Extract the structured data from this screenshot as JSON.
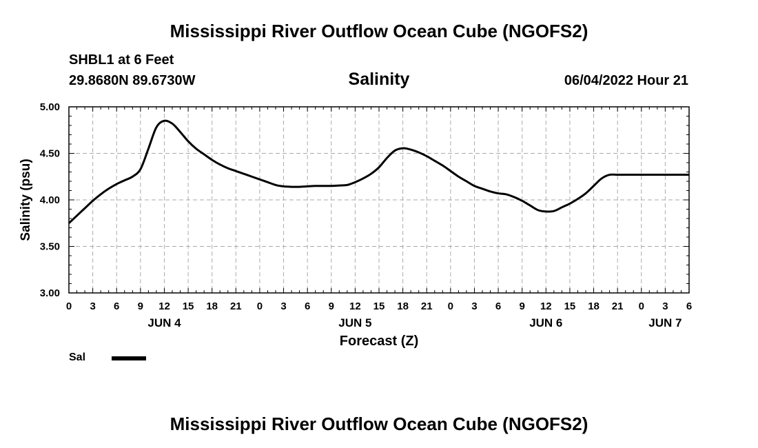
{
  "header": {
    "main_title": "Mississippi River Outflow Ocean Cube (NGOFS2)",
    "station": "SHBL1 at 6 Feet",
    "coords": "29.8680N  89.6730W",
    "plot_title": "Salinity",
    "datetime": "06/04/2022 Hour 21",
    "bottom_title": "Mississippi River Outflow Ocean Cube (NGOFS2)"
  },
  "legend": {
    "label": "Sal"
  },
  "colors": {
    "line": "#000000",
    "grid": "#aaaaaa"
  },
  "chart_data": {
    "type": "line",
    "title": "Salinity",
    "xlabel": "Forecast (Z)",
    "ylabel": "Salinity (psu)",
    "xlim": [
      0,
      78
    ],
    "ylim": [
      3.0,
      5.0
    ],
    "y_ticks": [
      3.0,
      3.5,
      4.0,
      4.5,
      5.0
    ],
    "y_tick_labels": [
      "3.00",
      "3.50",
      "4.00",
      "4.50",
      "5.00"
    ],
    "x_ticks": [
      0,
      3,
      6,
      9,
      12,
      15,
      18,
      21,
      24,
      27,
      30,
      33,
      36,
      39,
      42,
      45,
      48,
      51,
      54,
      57,
      60,
      63,
      66,
      69,
      72,
      75,
      78
    ],
    "x_tick_labels": [
      "0",
      "3",
      "6",
      "9",
      "12",
      "15",
      "18",
      "21",
      "0",
      "3",
      "6",
      "9",
      "12",
      "15",
      "18",
      "21",
      "0",
      "3",
      "6",
      "9",
      "12",
      "15",
      "18",
      "21",
      "0",
      "3",
      "6"
    ],
    "day_labels": [
      {
        "text": "JUN 4",
        "x": 12
      },
      {
        "text": "JUN 5",
        "x": 36
      },
      {
        "text": "JUN 6",
        "x": 60
      },
      {
        "text": "JUN 7",
        "x": 75
      }
    ],
    "grid": true,
    "series": [
      {
        "name": "Sal",
        "x": [
          0,
          1,
          2,
          3,
          4,
          5,
          6,
          7,
          8,
          9,
          10,
          11,
          12,
          13,
          14,
          15,
          16,
          17,
          18,
          19,
          20,
          21,
          22,
          23,
          24,
          25,
          26,
          27,
          28,
          29,
          30,
          31,
          32,
          33,
          34,
          35,
          36,
          37,
          38,
          39,
          40,
          41,
          42,
          43,
          44,
          45,
          46,
          47,
          48,
          49,
          50,
          51,
          52,
          53,
          54,
          55,
          56,
          57,
          58,
          59,
          60,
          61,
          62,
          63,
          64,
          65,
          66,
          67,
          68,
          69,
          70,
          71,
          72,
          73,
          74,
          75,
          76,
          77,
          78
        ],
        "values": [
          3.75,
          3.83,
          3.91,
          3.99,
          4.06,
          4.12,
          4.17,
          4.21,
          4.25,
          4.33,
          4.55,
          4.78,
          4.85,
          4.82,
          4.73,
          4.63,
          4.55,
          4.49,
          4.43,
          4.38,
          4.34,
          4.31,
          4.28,
          4.25,
          4.22,
          4.19,
          4.16,
          4.145,
          4.14,
          4.14,
          4.145,
          4.15,
          4.15,
          4.15,
          4.155,
          4.16,
          4.19,
          4.23,
          4.28,
          4.35,
          4.45,
          4.53,
          4.555,
          4.54,
          4.51,
          4.47,
          4.42,
          4.37,
          4.31,
          4.25,
          4.2,
          4.15,
          4.12,
          4.09,
          4.07,
          4.06,
          4.03,
          3.99,
          3.94,
          3.89,
          3.875,
          3.88,
          3.92,
          3.96,
          4.01,
          4.07,
          4.15,
          4.23,
          4.27,
          4.27,
          4.27,
          4.27,
          4.27,
          4.27,
          4.27,
          4.27,
          4.27,
          4.27,
          4.27
        ]
      }
    ]
  }
}
